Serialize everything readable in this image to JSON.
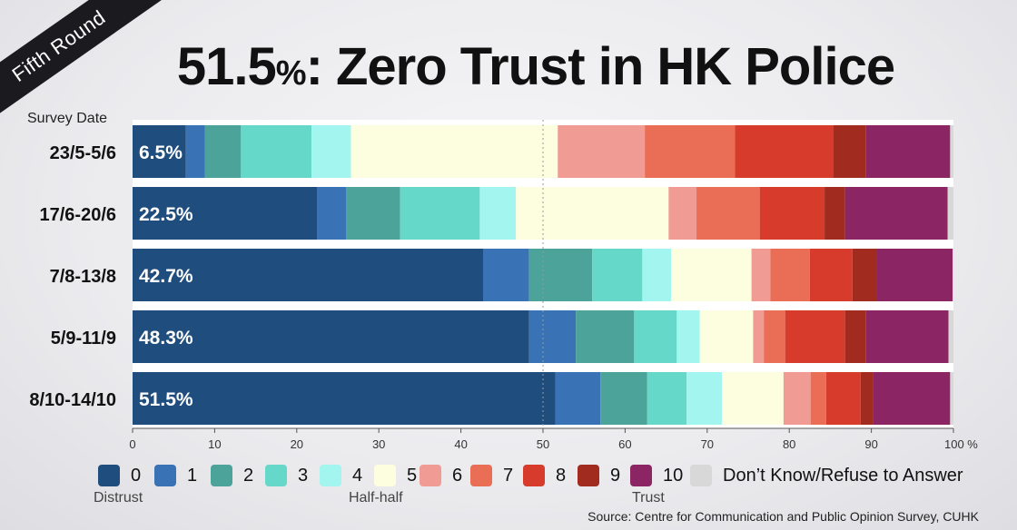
{
  "ribbon": "Fifth Round",
  "title_bold": "51.5",
  "title_pct": "%",
  "title_rest": ": Zero Trust in HK Police",
  "survey_date_label": "Survey Date",
  "source": "Source: Centre for Communication and Public Opinion Survey, CUHK",
  "legend": {
    "items": [
      {
        "label": "0",
        "color": "#1f4e7e"
      },
      {
        "label": "1",
        "color": "#3a73b5"
      },
      {
        "label": "2",
        "color": "#4ba39a"
      },
      {
        "label": "3",
        "color": "#66d8c9"
      },
      {
        "label": "4",
        "color": "#a3f5ef"
      },
      {
        "label": "5",
        "color": "#fdfde0"
      },
      {
        "label": "6",
        "color": "#f09b93"
      },
      {
        "label": "7",
        "color": "#ea6d55"
      },
      {
        "label": "8",
        "color": "#d63b2c"
      },
      {
        "label": "9",
        "color": "#a02b1e"
      },
      {
        "label": "10",
        "color": "#8b2563"
      },
      {
        "label": "Don’t Know/Refuse to Answer",
        "color": "#d8d8d8"
      }
    ],
    "sub_distrust": "Distrust",
    "sub_half": "Half-half",
    "sub_trust": "Trust"
  },
  "chart_data": {
    "type": "bar",
    "orientation": "horizontal",
    "stacked": true,
    "categories": [
      "23/5-5/6",
      "17/6-20/6",
      "7/8-13/8",
      "5/9-11/9",
      "8/10-14/10"
    ],
    "series": [
      {
        "name": "0",
        "values": [
          6.5,
          22.5,
          42.7,
          48.3,
          51.5
        ]
      },
      {
        "name": "1",
        "values": [
          2.3,
          3.5,
          5.6,
          5.7,
          5.5
        ]
      },
      {
        "name": "2",
        "values": [
          4.4,
          6.6,
          7.7,
          7.1,
          5.7
        ]
      },
      {
        "name": "3",
        "values": [
          8.6,
          9.7,
          6.1,
          5.2,
          4.8
        ]
      },
      {
        "name": "4",
        "values": [
          4.8,
          4.4,
          3.5,
          2.8,
          4.3
        ]
      },
      {
        "name": "5",
        "values": [
          25.2,
          18.6,
          9.8,
          6.5,
          7.5
        ]
      },
      {
        "name": "6",
        "values": [
          10.6,
          3.4,
          2.3,
          1.3,
          3.3
        ]
      },
      {
        "name": "7",
        "values": [
          11.0,
          7.7,
          4.8,
          2.6,
          1.9
        ]
      },
      {
        "name": "8",
        "values": [
          12.0,
          7.9,
          5.2,
          7.3,
          4.2
        ]
      },
      {
        "name": "9",
        "values": [
          3.9,
          2.5,
          2.9,
          2.5,
          1.5
        ]
      },
      {
        "name": "10",
        "values": [
          10.3,
          12.5,
          9.3,
          10.1,
          9.4
        ]
      },
      {
        "name": "Don’t Know/Refuse to Answer",
        "values": [
          0.4,
          0.7,
          0.1,
          0.6,
          0.4
        ]
      }
    ],
    "data_labels": [
      "6.5%",
      "22.5%",
      "42.7%",
      "48.3%",
      "51.5%"
    ],
    "xlim": [
      0,
      100
    ],
    "xticks": [
      "0",
      "10",
      "20",
      "30",
      "40",
      "50",
      "60",
      "70",
      "80",
      "90",
      "100 %"
    ],
    "grid": "dotted vertical line at 50"
  }
}
